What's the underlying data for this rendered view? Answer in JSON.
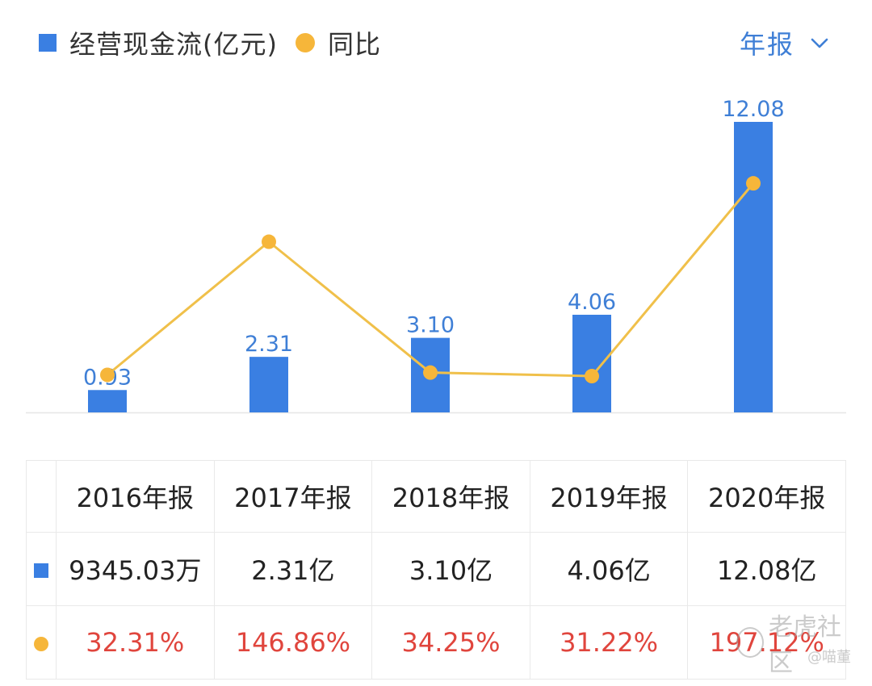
{
  "legend": {
    "series_label": "经营现金流(亿元)",
    "yoy_label": "同比",
    "bar_color": "#3a7fe2",
    "dot_color": "#f6b63a"
  },
  "period": {
    "label": "年报",
    "icon": "chevron-down-icon"
  },
  "chart_data": {
    "type": "bar",
    "categories": [
      "2016年报",
      "2017年报",
      "2018年报",
      "2019年报",
      "2020年报"
    ],
    "series": [
      {
        "name": "经营现金流(亿元)",
        "type": "bar",
        "values": [
          0.93,
          2.31,
          3.1,
          4.06,
          12.08
        ],
        "labels": [
          "0.93",
          "2.31",
          "3.10",
          "4.06",
          "12.08"
        ]
      },
      {
        "name": "同比",
        "type": "line",
        "values": [
          32.31,
          146.86,
          34.25,
          31.22,
          197.12
        ]
      }
    ],
    "ylim": [
      0,
      12.08
    ],
    "y2lim": [
      0,
      250
    ],
    "grid": false,
    "legend_position": "top-left"
  },
  "table": {
    "headers": [
      "2016年报",
      "2017年报",
      "2018年报",
      "2019年报",
      "2020年报"
    ],
    "values": [
      "9345.03万",
      "2.31亿",
      "3.10亿",
      "4.06亿",
      "12.08亿"
    ],
    "yoy": [
      "32.31%",
      "146.86%",
      "34.25%",
      "31.22%",
      "197.12%"
    ]
  },
  "watermark": {
    "text": "老虎社区",
    "sub": "@喵董"
  }
}
